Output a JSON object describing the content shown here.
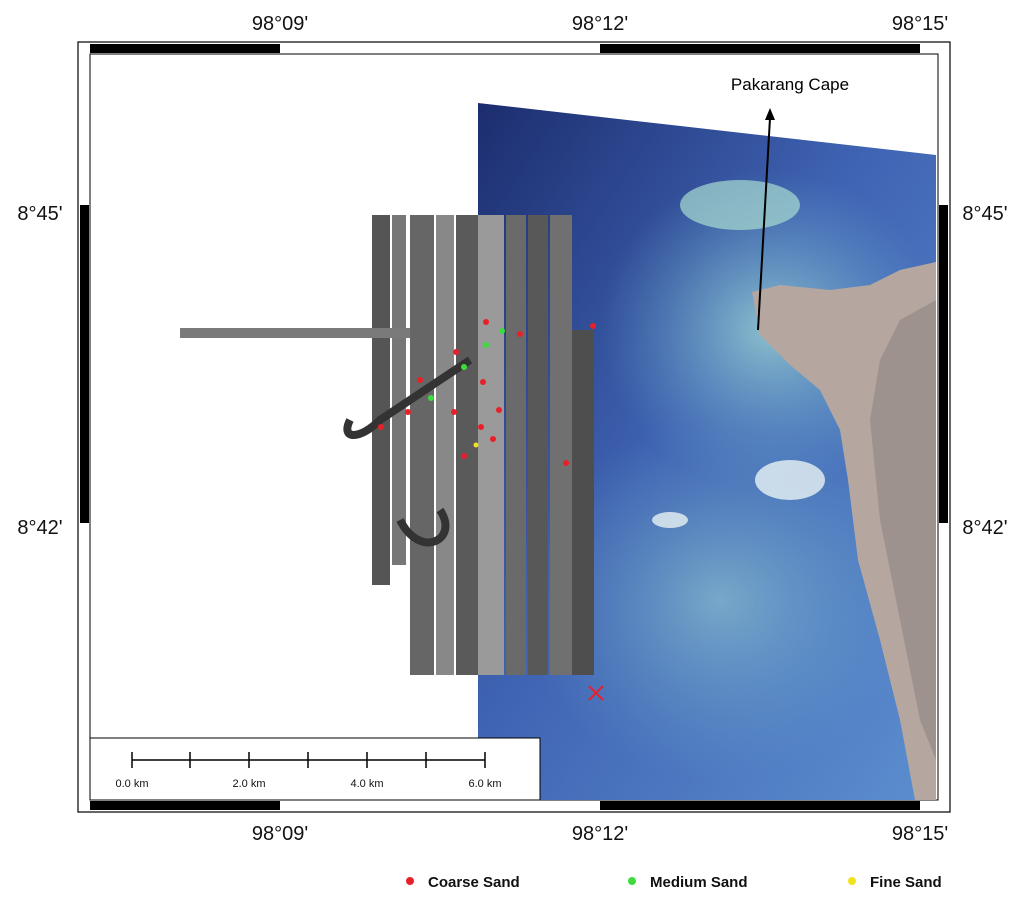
{
  "map": {
    "top_labels": [
      "98°09'",
      "98°12'",
      "98°15'"
    ],
    "bottom_labels": [
      "98°09'",
      "98°12'",
      "98°15'"
    ],
    "left_labels": [
      "8°45'",
      "8°42'"
    ],
    "right_labels": [
      "8°45'",
      "8°42'"
    ],
    "annotation": "Pakarang Cape",
    "scale_labels": [
      "0.0 km",
      "2.0 km",
      "4.0 km",
      "6.0 km"
    ],
    "legend": [
      {
        "name": "Coarse Sand",
        "color": "#e8202a"
      },
      {
        "name": "Medium Sand",
        "color": "#3ddc3d"
      },
      {
        "name": "Fine Sand",
        "color": "#f2e21e"
      }
    ]
  }
}
